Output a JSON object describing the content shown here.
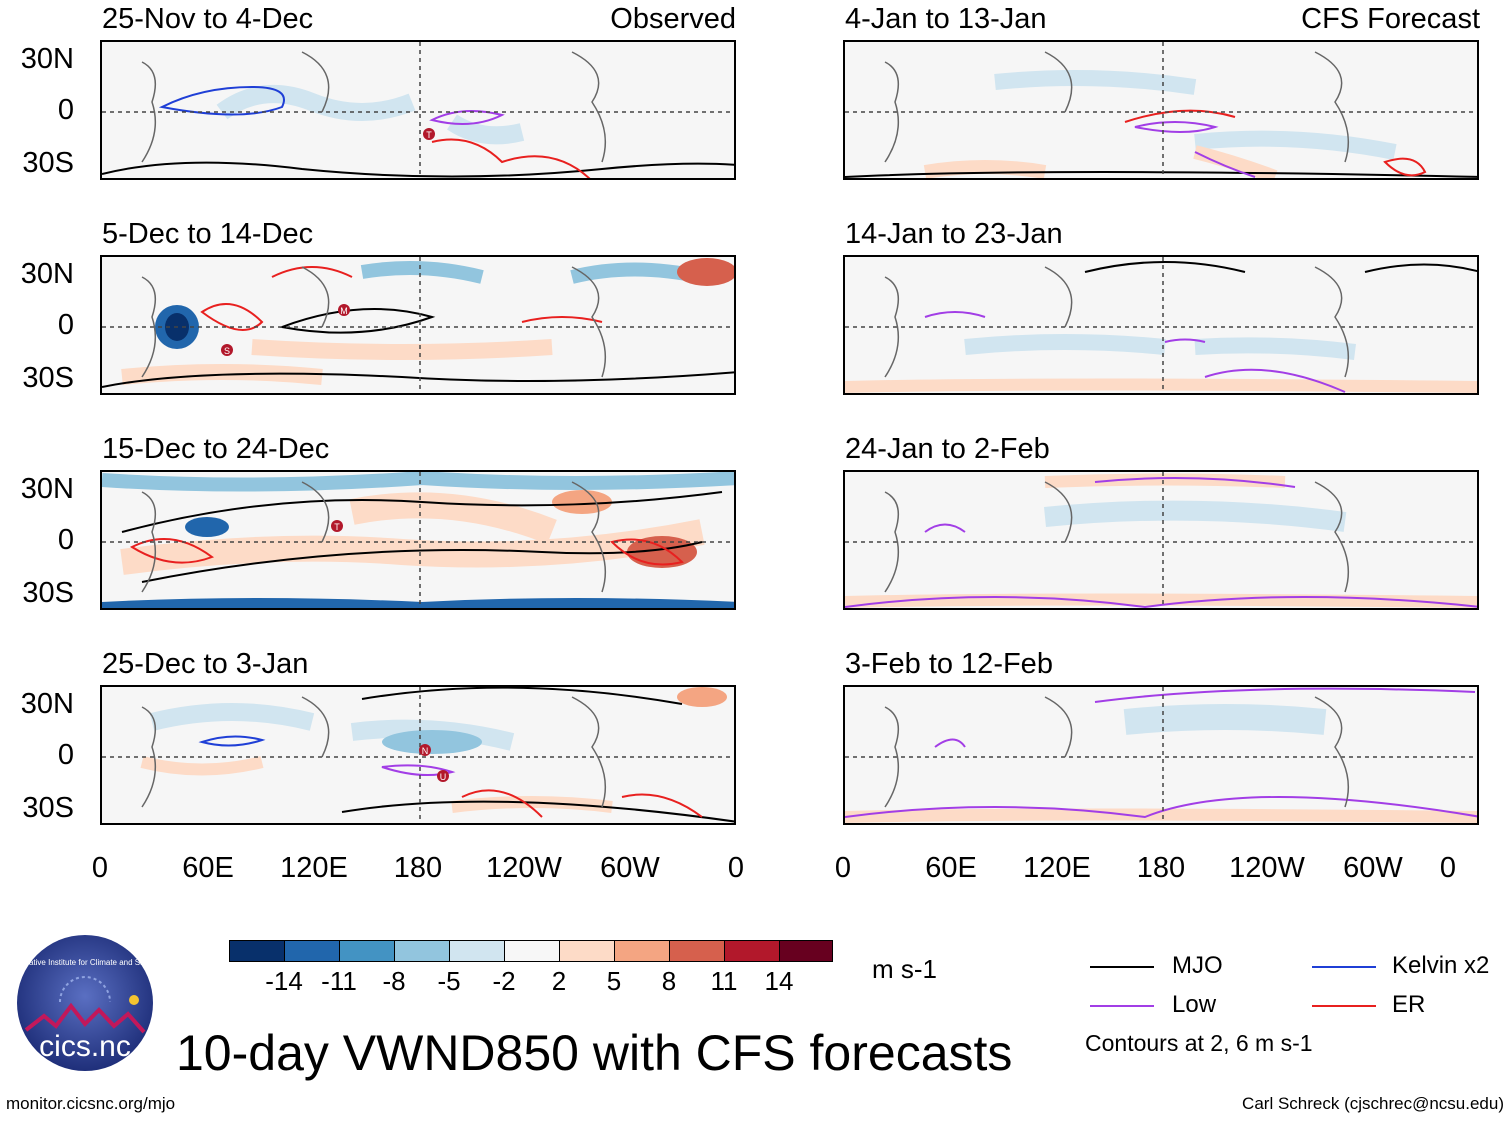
{
  "panels_left": [
    {
      "title": "25-Nov to 4-Dec",
      "tag": "Observed"
    },
    {
      "title": "5-Dec to 14-Dec",
      "tag": ""
    },
    {
      "title": "15-Dec to 24-Dec",
      "tag": ""
    },
    {
      "title": "25-Dec to 3-Jan",
      "tag": ""
    }
  ],
  "panels_right": [
    {
      "title": "4-Jan to 13-Jan",
      "tag": "CFS Forecast"
    },
    {
      "title": "14-Jan to 23-Jan",
      "tag": ""
    },
    {
      "title": "24-Jan to 2-Feb",
      "tag": ""
    },
    {
      "title": "3-Feb to 12-Feb",
      "tag": ""
    }
  ],
  "lat_labels": [
    "30N",
    "0",
    "30S"
  ],
  "lon_labels": [
    "0",
    "60E",
    "120E",
    "180",
    "120W",
    "60W",
    "0"
  ],
  "colorbar": {
    "colors": [
      "#08306b",
      "#2166ac",
      "#4393c3",
      "#92c5de",
      "#d1e5f0",
      "#f7f7f7",
      "#fddbc7",
      "#f4a582",
      "#d6604d",
      "#b2182b",
      "#67001f"
    ],
    "labels": [
      "-14",
      "-11",
      "-8",
      "-5",
      "-2",
      "2",
      "5",
      "8",
      "11",
      "14"
    ],
    "units": "m s-1"
  },
  "legend": {
    "mjo": {
      "label": "MJO",
      "color": "#000000"
    },
    "kelvin": {
      "label": "Kelvin x2",
      "color": "#1f3fd6"
    },
    "low": {
      "label": "Low",
      "color": "#a23ee6"
    },
    "er": {
      "label": "ER",
      "color": "#e8201f"
    },
    "note": "Contours at 2, 6 m s-1"
  },
  "logo": {
    "text": "cics.nc",
    "arc_text": "Cooperative Institute for Climate and Satellites"
  },
  "main_title": "10-day VWND850 with CFS forecasts",
  "footer_left": "monitor.cicsnc.org/mjo",
  "footer_right": "Carl Schreck (cjschrec@ncsu.edu)",
  "storm_markers": [
    {
      "panel": "left-0",
      "label": "T"
    },
    {
      "panel": "left-1",
      "label": "M"
    },
    {
      "panel": "left-1",
      "label": "S"
    },
    {
      "panel": "left-2",
      "label": "T"
    },
    {
      "panel": "left-3",
      "label": "N"
    },
    {
      "panel": "left-3",
      "label": "U"
    }
  ]
}
